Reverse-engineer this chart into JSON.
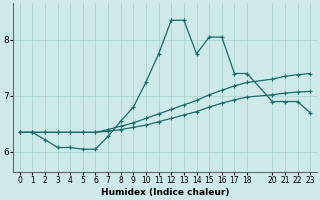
{
  "xlabel": "Humidex (Indice chaleur)",
  "background_color": "#ceeae8",
  "grid_color": "#aed4d0",
  "line_color": "#1a6b6b",
  "xlim": [
    -0.5,
    23.5
  ],
  "ylim": [
    5.65,
    8.65
  ],
  "yticks": [
    6,
    7,
    8
  ],
  "xticks": [
    0,
    1,
    2,
    3,
    4,
    5,
    6,
    7,
    8,
    9,
    10,
    11,
    12,
    13,
    14,
    15,
    16,
    17,
    18,
    20,
    21,
    22,
    23
  ],
  "xticklabels": [
    "0",
    "1",
    "2",
    "3",
    "4",
    "5",
    "6",
    "7",
    "8",
    "9",
    "10",
    "11",
    "12",
    "13",
    "14",
    "15",
    "16",
    "17",
    "18",
    "20",
    "21",
    "22",
    "23"
  ],
  "series1_x": [
    0,
    1,
    2,
    3,
    4,
    5,
    6,
    7,
    8,
    9,
    10,
    11,
    12,
    13,
    14,
    15,
    16,
    17,
    18,
    20,
    21,
    22,
    23
  ],
  "series1_y": [
    6.35,
    6.35,
    6.22,
    6.08,
    6.08,
    6.05,
    6.05,
    6.28,
    6.55,
    6.8,
    7.25,
    7.75,
    8.35,
    8.35,
    7.75,
    8.05,
    8.05,
    7.4,
    7.4,
    6.9,
    6.9,
    6.9,
    6.7
  ],
  "series2_x": [
    0,
    1,
    2,
    3,
    4,
    5,
    6,
    7,
    8,
    9,
    10,
    11,
    12,
    13,
    14,
    15,
    16,
    17,
    18,
    20,
    21,
    22,
    23
  ],
  "series2_y": [
    6.35,
    6.35,
    6.35,
    6.35,
    6.35,
    6.35,
    6.35,
    6.4,
    6.46,
    6.52,
    6.6,
    6.68,
    6.76,
    6.84,
    6.92,
    7.02,
    7.1,
    7.18,
    7.24,
    7.3,
    7.35,
    7.38,
    7.4
  ],
  "series3_x": [
    0,
    1,
    2,
    3,
    4,
    5,
    6,
    7,
    8,
    9,
    10,
    11,
    12,
    13,
    14,
    15,
    16,
    17,
    18,
    20,
    21,
    22,
    23
  ],
  "series3_y": [
    6.35,
    6.35,
    6.35,
    6.35,
    6.35,
    6.35,
    6.35,
    6.37,
    6.4,
    6.44,
    6.48,
    6.54,
    6.6,
    6.66,
    6.72,
    6.8,
    6.87,
    6.93,
    6.98,
    7.02,
    7.05,
    7.07,
    7.08
  ]
}
